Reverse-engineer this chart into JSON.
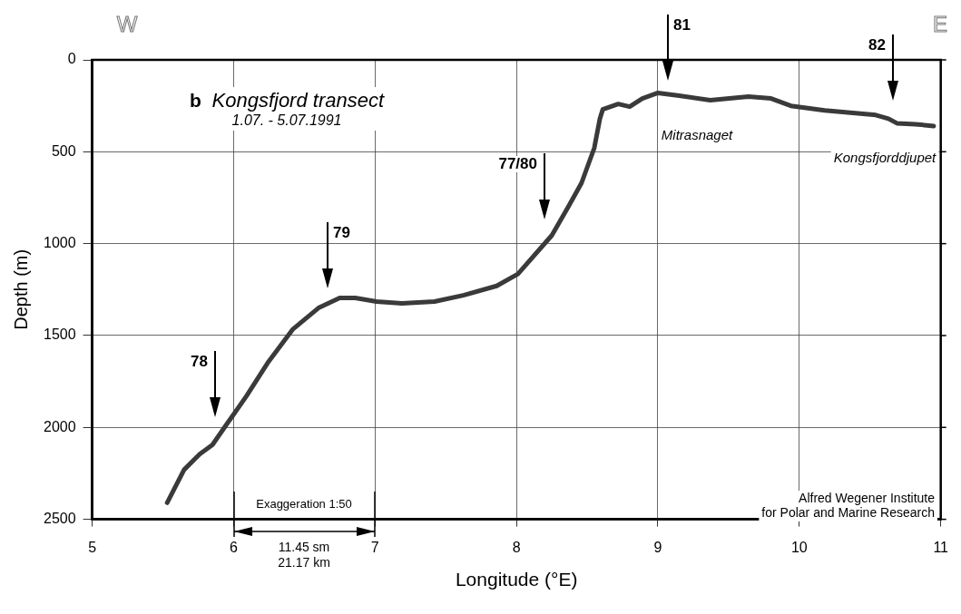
{
  "chart_data": {
    "type": "line",
    "title": "b Kongsfjord transect",
    "subtitle": "1.07. - 5.07.1991",
    "xlabel": "Longitude (°E)",
    "ylabel": "Depth (m)",
    "x": [
      5.53,
      5.65,
      5.76,
      5.85,
      5.94,
      6.09,
      6.24,
      6.42,
      6.6,
      6.75,
      6.86,
      7.01,
      7.19,
      7.42,
      7.63,
      7.86,
      8.01,
      8.25,
      8.37,
      8.46,
      8.55,
      8.59,
      8.61,
      8.72,
      8.8,
      8.89,
      9.0,
      9.15,
      9.37,
      9.64,
      9.8,
      9.94,
      10.18,
      10.54,
      10.63,
      10.69,
      10.82,
      10.95
    ],
    "series": [
      {
        "color": "#3a3a3a",
        "values": [
          2410,
          2230,
          2145,
          2095,
          1995,
          1830,
          1650,
          1465,
          1350,
          1295,
          1295,
          1315,
          1325,
          1315,
          1280,
          1230,
          1165,
          955,
          795,
          670,
          480,
          320,
          270,
          240,
          255,
          210,
          180,
          195,
          220,
          200,
          210,
          250,
          275,
          300,
          320,
          345,
          350,
          360
        ]
      }
    ],
    "xlim": [
      5,
      11
    ],
    "xticks": [
      5,
      6,
      7,
      8,
      9,
      10,
      11
    ],
    "ylim": [
      2500,
      0
    ],
    "yticks": [
      0,
      500,
      1000,
      1500,
      2000,
      2500
    ],
    "grid": true,
    "legend": false,
    "marker": "none",
    "line_style": "solid",
    "annotations": [
      "W",
      "E",
      "Mitrasnaget",
      "Kongsfjorddjupet",
      "Exaggeration 1:50",
      "11.45 sm",
      "21.17 km",
      "Alfred Wegener Institute",
      "for Polar and Marine Research",
      "78",
      "79",
      "77/80",
      "81",
      "82"
    ]
  }
}
